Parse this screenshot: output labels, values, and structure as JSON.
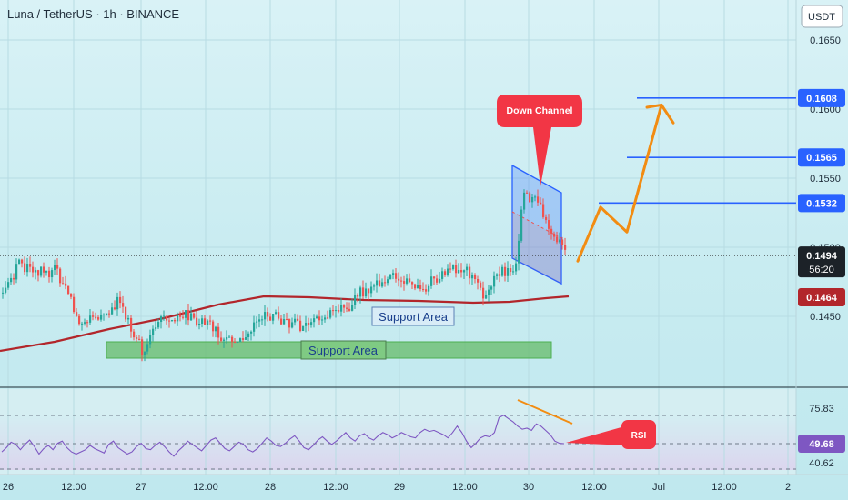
{
  "header": {
    "title": "Luna / TetherUS · 1h · BINANCE",
    "currency": "USDT"
  },
  "chart_data": [
    {
      "type": "candlestick",
      "title": "Luna / TetherUS · 1h · BINANCE",
      "y_axis": {
        "unit": "USDT",
        "ticks": [
          "0.1650",
          "0.1600",
          "0.1550",
          "0.1500",
          "0.1450"
        ],
        "range": [
          0.1398,
          0.1682
        ]
      },
      "x_axis": {
        "ticks": [
          "26",
          "12:00",
          "27",
          "12:00",
          "28",
          "12:00",
          "29",
          "12:00",
          "30",
          "12:00",
          "Jul",
          "12:00",
          "2"
        ]
      },
      "last_price": "0.1494",
      "countdown": "56:20",
      "ma_value": "0.1464",
      "levels": [
        {
          "label": "0.1608",
          "value": 0.1608
        },
        {
          "label": "0.1565",
          "value": 0.1565
        },
        {
          "label": "0.1532",
          "value": 0.1532
        }
      ],
      "annotations": {
        "down_channel": "Down Channel",
        "support_upper": "Support Area",
        "support_lower": "Support Area"
      },
      "projection": [
        [
          0.149,
          0.149
        ],
        [
          0.1529,
          0.1529
        ],
        [
          0.1511,
          0.1511
        ],
        [
          0.1603,
          0.1603
        ],
        [
          0.159,
          0.159
        ]
      ],
      "colors": {
        "up": "#26a69a",
        "down": "#ef5350",
        "moving_average": "#b2262b",
        "levels": "#2962ff",
        "projection": "#f28c12",
        "support": "#66bb6a",
        "channel": "#2962ff",
        "callout": "#f23645"
      }
    },
    {
      "type": "line",
      "title": "RSI",
      "y_ticks": [
        "75.83",
        "49.68",
        "40.62"
      ],
      "current": "49.68",
      "label": "RSI",
      "values": [
        42,
        46,
        51,
        49,
        44,
        49,
        53,
        47,
        40,
        45,
        48,
        44,
        50,
        52,
        46,
        42,
        40,
        42,
        44,
        48,
        45,
        43,
        41,
        49,
        52,
        46,
        43,
        40,
        42,
        47,
        50,
        45,
        44,
        48,
        51,
        47,
        42,
        38,
        43,
        47,
        52,
        49,
        46,
        43,
        48,
        53,
        55,
        50,
        45,
        43,
        47,
        51,
        49,
        44,
        42,
        45,
        50,
        55,
        52,
        48,
        47,
        50,
        54,
        57,
        52,
        46,
        44,
        48,
        53,
        56,
        52,
        49,
        52,
        56,
        60,
        55,
        52,
        57,
        59,
        55,
        53,
        57,
        60,
        58,
        55,
        57,
        60,
        58,
        56,
        55,
        60,
        63,
        61,
        62,
        60,
        58,
        55,
        60,
        66,
        60,
        52,
        46,
        50,
        55,
        57,
        56,
        60,
        74,
        76,
        73,
        70,
        66,
        63,
        64,
        62,
        68,
        66,
        62,
        58,
        52,
        50,
        49.68
      ]
    }
  ]
}
